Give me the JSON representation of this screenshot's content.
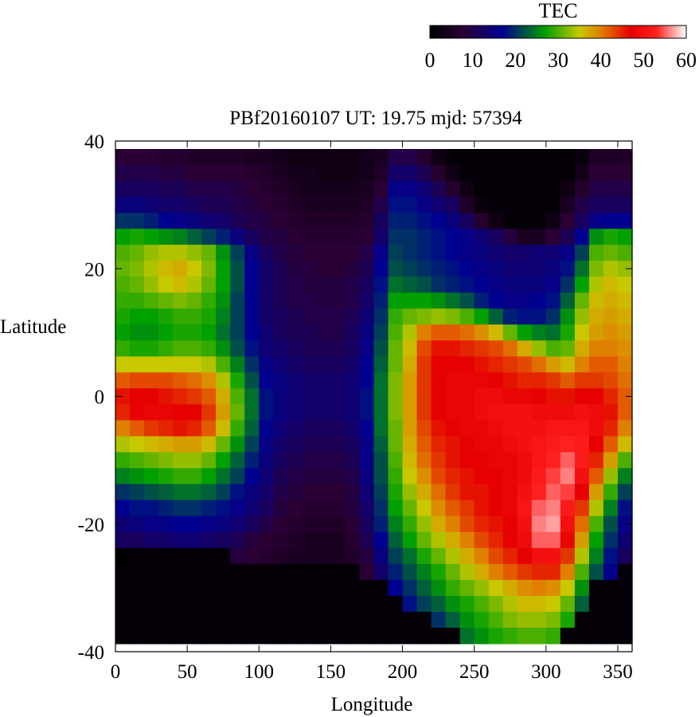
{
  "chart_data": {
    "type": "heatmap",
    "title": "PBf20160107  UT: 19.75  mjd: 57394",
    "xlabel": "Longitude",
    "ylabel": "Latitude",
    "xlim": [
      0,
      360
    ],
    "ylim": [
      -40,
      40
    ],
    "x_ticks": [
      "0",
      "50",
      "100",
      "150",
      "200",
      "250",
      "300",
      "350"
    ],
    "x_tick_values": [
      0,
      50,
      100,
      150,
      200,
      250,
      300,
      350
    ],
    "y_ticks": [
      "40",
      "20",
      "0",
      "-20",
      "-40"
    ],
    "y_tick_values": [
      40,
      20,
      0,
      -20,
      -40
    ],
    "colorbar": {
      "label": "TEC",
      "range": [
        0,
        60
      ],
      "ticks": [
        "0",
        "10",
        "20",
        "30",
        "40",
        "50",
        "60"
      ],
      "tick_values": [
        0,
        10,
        20,
        30,
        40,
        50,
        60
      ],
      "colors": [
        "#000000",
        "#2a0035",
        "#000090",
        "#00a000",
        "#c8c800",
        "#e08000",
        "#e60000",
        "#ff2020",
        "#ffffff"
      ],
      "stops": [
        0,
        8,
        17,
        27,
        35,
        40,
        47,
        53,
        60
      ]
    },
    "grid": false,
    "longitude_step": 10,
    "latitude_step": 2.5,
    "longitudes": [
      0,
      10,
      20,
      30,
      40,
      50,
      60,
      70,
      80,
      90,
      100,
      110,
      120,
      130,
      140,
      150,
      160,
      170,
      180,
      190,
      200,
      210,
      220,
      230,
      240,
      250,
      260,
      270,
      280,
      290,
      300,
      310,
      320,
      330,
      340,
      350
    ],
    "latitudes": [
      37.5,
      35,
      32.5,
      30,
      27.5,
      25,
      22.5,
      20,
      17.5,
      15,
      12.5,
      10,
      7.5,
      5,
      2.5,
      0,
      -2.5,
      -5,
      -7.5,
      -10,
      -12.5,
      -15,
      -17.5,
      -20,
      -22.5,
      -25,
      -27.5,
      -30,
      -32.5,
      -35,
      -37.5
    ],
    "values": [
      [
        8,
        8,
        8,
        7,
        7,
        6,
        6,
        6,
        6,
        5,
        5,
        4,
        3,
        3,
        3,
        3,
        3,
        4,
        5,
        10,
        10,
        7,
        3,
        1,
        1,
        1,
        1,
        1,
        1,
        1,
        1,
        1,
        2,
        6,
        6,
        6
      ],
      [
        10,
        10,
        10,
        9,
        9,
        8,
        8,
        8,
        8,
        7,
        6,
        5,
        4,
        4,
        3,
        3,
        3,
        4,
        6,
        13,
        13,
        11,
        7,
        3,
        1,
        1,
        1,
        1,
        1,
        1,
        1,
        1,
        4,
        8,
        8,
        8
      ],
      [
        12,
        12,
        12,
        11,
        11,
        10,
        10,
        10,
        9,
        8,
        7,
        6,
        5,
        4,
        4,
        4,
        4,
        5,
        8,
        16,
        16,
        14,
        11,
        7,
        3,
        1,
        1,
        1,
        1,
        1,
        1,
        3,
        7,
        10,
        10,
        10
      ],
      [
        15,
        15,
        14,
        13,
        13,
        12,
        11,
        11,
        10,
        9,
        8,
        7,
        6,
        5,
        5,
        5,
        5,
        6,
        10,
        18,
        18,
        16,
        14,
        12,
        6,
        2,
        1,
        1,
        1,
        1,
        1,
        5,
        10,
        12,
        12,
        12
      ],
      [
        20,
        20,
        19,
        17,
        16,
        15,
        14,
        13,
        11,
        10,
        9,
        8,
        7,
        6,
        6,
        6,
        6,
        7,
        12,
        19,
        19,
        18,
        17,
        15,
        12,
        7,
        3,
        1,
        1,
        1,
        3,
        8,
        12,
        16,
        17,
        17
      ],
      [
        27,
        28,
        27,
        26,
        25,
        23,
        21,
        19,
        15,
        12,
        10,
        9,
        8,
        7,
        7,
        7,
        7,
        8,
        13,
        20,
        20,
        19,
        18,
        17,
        16,
        14,
        12,
        9,
        5,
        5,
        8,
        11,
        17,
        26,
        28,
        27
      ],
      [
        30,
        31,
        33,
        34,
        34,
        33,
        31,
        26,
        21,
        16,
        12,
        10,
        9,
        8,
        8,
        8,
        8,
        10,
        16,
        21,
        20,
        19,
        18,
        17,
        16,
        15,
        14,
        13,
        13,
        14,
        14,
        16,
        21,
        30,
        31,
        30
      ],
      [
        31,
        32,
        34,
        36,
        37,
        35,
        32,
        27,
        22,
        17,
        13,
        11,
        9,
        9,
        8,
        8,
        9,
        11,
        17,
        22,
        21,
        20,
        19,
        18,
        17,
        16,
        15,
        14,
        14,
        14,
        15,
        18,
        24,
        32,
        34,
        33
      ],
      [
        30,
        31,
        33,
        35,
        36,
        34,
        31,
        27,
        22,
        17,
        13,
        11,
        10,
        9,
        9,
        9,
        10,
        12,
        18,
        24,
        23,
        22,
        20,
        19,
        18,
        17,
        16,
        15,
        15,
        15,
        16,
        20,
        27,
        34,
        36,
        35
      ],
      [
        29,
        29,
        30,
        31,
        32,
        31,
        29,
        26,
        21,
        17,
        13,
        11,
        10,
        10,
        9,
        9,
        10,
        13,
        19,
        27,
        27,
        27,
        26,
        24,
        22,
        19,
        17,
        16,
        16,
        17,
        18,
        23,
        31,
        36,
        37,
        36
      ],
      [
        28,
        27,
        27,
        28,
        29,
        29,
        28,
        25,
        21,
        17,
        13,
        12,
        11,
        10,
        10,
        10,
        11,
        14,
        20,
        29,
        31,
        32,
        33,
        32,
        30,
        27,
        23,
        19,
        18,
        18,
        20,
        26,
        33,
        37,
        38,
        37
      ],
      [
        27,
        26,
        26,
        27,
        28,
        28,
        27,
        24,
        21,
        17,
        14,
        12,
        11,
        11,
        10,
        10,
        12,
        15,
        21,
        30,
        34,
        40,
        42,
        42,
        41,
        39,
        36,
        31,
        27,
        25,
        24,
        28,
        35,
        38,
        39,
        38
      ],
      [
        29,
        28,
        28,
        29,
        30,
        30,
        29,
        26,
        22,
        18,
        14,
        13,
        12,
        11,
        11,
        11,
        12,
        16,
        22,
        31,
        36,
        43,
        46,
        46,
        45,
        44,
        43,
        41,
        37,
        33,
        30,
        31,
        37,
        40,
        40,
        39
      ],
      [
        35,
        35,
        35,
        35,
        35,
        35,
        34,
        30,
        25,
        20,
        16,
        14,
        13,
        12,
        12,
        12,
        13,
        17,
        23,
        31,
        37,
        44,
        47,
        47,
        47,
        46,
        45,
        44,
        43,
        41,
        38,
        36,
        40,
        42,
        42,
        40
      ],
      [
        42,
        43,
        43,
        43,
        42,
        41,
        39,
        34,
        28,
        22,
        17,
        15,
        14,
        13,
        13,
        13,
        14,
        17,
        24,
        32,
        38,
        44,
        47,
        48,
        48,
        48,
        47,
        46,
        45,
        45,
        44,
        42,
        44,
        44,
        43,
        41
      ],
      [
        46,
        47,
        47,
        46,
        45,
        44,
        42,
        37,
        30,
        24,
        18,
        15,
        14,
        13,
        13,
        13,
        14,
        18,
        24,
        32,
        38,
        44,
        47,
        48,
        48,
        49,
        49,
        48,
        48,
        47,
        46,
        46,
        47,
        47,
        45,
        42
      ],
      [
        45,
        47,
        48,
        48,
        47,
        47,
        44,
        38,
        31,
        24,
        18,
        15,
        14,
        13,
        13,
        13,
        14,
        18,
        24,
        32,
        38,
        44,
        47,
        48,
        48,
        49,
        50,
        50,
        50,
        49,
        49,
        49,
        50,
        49,
        46,
        42
      ],
      [
        40,
        42,
        44,
        45,
        46,
        45,
        42,
        36,
        29,
        23,
        17,
        14,
        13,
        12,
        12,
        12,
        13,
        17,
        24,
        31,
        38,
        43,
        46,
        47,
        48,
        48,
        49,
        50,
        50,
        50,
        51,
        51,
        51,
        49,
        45,
        40
      ],
      [
        34,
        35,
        36,
        37,
        38,
        38,
        36,
        31,
        26,
        21,
        16,
        13,
        12,
        11,
        11,
        11,
        12,
        16,
        23,
        31,
        37,
        42,
        45,
        46,
        47,
        48,
        48,
        49,
        50,
        51,
        52,
        53,
        52,
        47,
        42,
        36
      ],
      [
        29,
        30,
        31,
        32,
        33,
        33,
        31,
        27,
        23,
        19,
        15,
        12,
        11,
        10,
        10,
        10,
        11,
        16,
        22,
        30,
        36,
        41,
        44,
        46,
        47,
        47,
        48,
        48,
        49,
        51,
        53,
        55,
        52,
        45,
        38,
        30
      ],
      [
        25,
        26,
        27,
        28,
        29,
        29,
        27,
        24,
        21,
        17,
        14,
        11,
        10,
        9,
        9,
        9,
        10,
        15,
        22,
        29,
        35,
        39,
        43,
        45,
        46,
        47,
        47,
        48,
        49,
        52,
        54,
        56,
        50,
        42,
        33,
        25
      ],
      [
        20,
        21,
        22,
        23,
        24,
        24,
        23,
        21,
        18,
        15,
        13,
        10,
        9,
        8,
        8,
        8,
        9,
        14,
        21,
        28,
        33,
        37,
        41,
        44,
        46,
        46,
        47,
        48,
        50,
        53,
        55,
        54,
        47,
        38,
        29,
        21
      ],
      [
        17,
        18,
        18,
        19,
        20,
        20,
        19,
        18,
        16,
        14,
        12,
        9,
        8,
        7,
        7,
        7,
        9,
        13,
        20,
        27,
        31,
        35,
        39,
        42,
        44,
        46,
        47,
        48,
        51,
        55,
        56,
        52,
        44,
        34,
        25,
        18
      ],
      [
        14,
        15,
        16,
        16,
        17,
        17,
        16,
        15,
        14,
        12,
        10,
        8,
        7,
        6,
        6,
        6,
        8,
        12,
        19,
        25,
        29,
        33,
        37,
        40,
        43,
        45,
        46,
        47,
        50,
        56,
        57,
        50,
        41,
        30,
        22,
        16
      ],
      [
        12,
        12,
        13,
        13,
        14,
        14,
        13,
        12,
        11,
        9,
        8,
        7,
        6,
        5,
        5,
        5,
        7,
        11,
        17,
        23,
        27,
        31,
        34,
        37,
        40,
        43,
        45,
        47,
        49,
        55,
        55,
        48,
        38,
        27,
        20,
        14
      ],
      [
        0,
        1,
        1,
        1,
        1,
        1,
        1,
        1,
        9,
        8,
        7,
        6,
        5,
        5,
        5,
        5,
        6,
        9,
        15,
        21,
        24,
        28,
        31,
        34,
        37,
        40,
        43,
        45,
        47,
        50,
        50,
        44,
        34,
        25,
        18,
        12
      ],
      [
        1,
        1,
        1,
        1,
        1,
        1,
        1,
        1,
        1,
        1,
        1,
        1,
        1,
        1,
        1,
        1,
        1,
        8,
        13,
        19,
        22,
        25,
        28,
        31,
        34,
        37,
        40,
        42,
        44,
        45,
        45,
        40,
        30,
        22,
        16,
        1
      ],
      [
        1,
        1,
        1,
        1,
        1,
        1,
        1,
        1,
        1,
        1,
        1,
        1,
        1,
        1,
        1,
        1,
        1,
        1,
        1,
        17,
        20,
        23,
        26,
        29,
        31,
        33,
        35,
        37,
        39,
        40,
        39,
        35,
        26,
        1,
        1,
        1
      ],
      [
        1,
        1,
        1,
        1,
        1,
        1,
        1,
        1,
        1,
        1,
        1,
        1,
        1,
        1,
        1,
        1,
        1,
        1,
        1,
        1,
        18,
        21,
        23,
        26,
        28,
        30,
        32,
        34,
        36,
        36,
        35,
        31,
        23,
        1,
        1,
        1
      ],
      [
        1,
        1,
        1,
        1,
        1,
        1,
        1,
        1,
        1,
        1,
        1,
        1,
        1,
        1,
        1,
        1,
        1,
        1,
        1,
        1,
        1,
        1,
        20,
        23,
        26,
        28,
        30,
        32,
        33,
        33,
        32,
        28,
        1,
        1,
        1,
        1
      ],
      [
        1,
        1,
        1,
        1,
        1,
        1,
        1,
        1,
        1,
        1,
        1,
        1,
        1,
        1,
        1,
        1,
        1,
        1,
        1,
        1,
        1,
        1,
        1,
        1,
        24,
        26,
        28,
        29,
        30,
        30,
        29,
        1,
        1,
        1,
        1,
        1
      ]
    ]
  }
}
